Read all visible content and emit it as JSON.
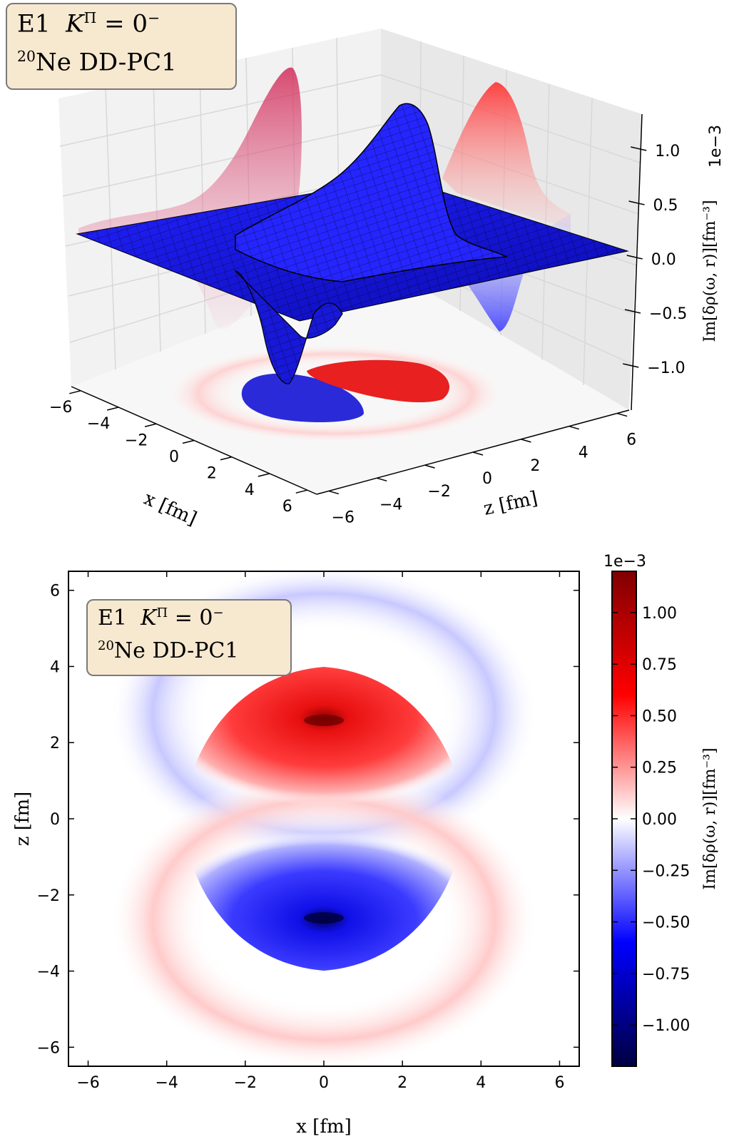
{
  "annotation": {
    "line1_prefix": "E1",
    "line1_k": "K",
    "line1_pi": "Π",
    "line1_eq": "= 0",
    "line1_minus": "−",
    "line2_mass": "20",
    "line2_text": "Ne DD-PC1"
  },
  "chart_data": [
    {
      "type": "surface3d",
      "xlabel": "x [fm]",
      "ylabel": "z [fm]",
      "zlabel": "Im[δρ(ω, r)][fm⁻³]",
      "z_offset_label": "1e−3",
      "x_ticks": [
        "−6",
        "−4",
        "−2",
        "0",
        "2",
        "4",
        "6"
      ],
      "y_ticks": [
        "−6",
        "−4",
        "−2",
        "0",
        "2",
        "4",
        "6"
      ],
      "z_ticks": [
        "1.0",
        "0.5",
        "0.0",
        "−0.5",
        "−1.0"
      ],
      "xlim": [
        -6.5,
        6.5
      ],
      "ylim": [
        -6.5,
        6.5
      ],
      "zlim": [
        -1.2,
        1.2
      ],
      "z_peak": 1.2,
      "z_trough": -1.2,
      "surface_color": "#1a1aee",
      "projection_cmap": "seismic"
    },
    {
      "type": "heatmap",
      "xlabel": "x [fm]",
      "ylabel": "z [fm]",
      "x_ticks": [
        "−6",
        "−4",
        "−2",
        "0",
        "2",
        "4",
        "6"
      ],
      "y_ticks": [
        "6",
        "4",
        "2",
        "0",
        "−2",
        "−4",
        "−6"
      ],
      "xlim": [
        -6.5,
        6.5
      ],
      "ylim": [
        -6.5,
        6.5
      ],
      "colorbar_label": "Im[δρ(ω, r)][fm⁻³]",
      "colorbar_offset_label": "1e−3",
      "colorbar_ticks": [
        "1.00",
        "0.75",
        "0.50",
        "0.25",
        "0.00",
        "−0.25",
        "−0.50",
        "−0.75",
        "−1.00"
      ],
      "colorbar_values": [
        1.0,
        0.75,
        0.5,
        0.25,
        0.0,
        -0.25,
        -0.5,
        -0.75,
        -1.0
      ],
      "color_range": [
        -1.2,
        1.2
      ],
      "features": [
        {
          "sign": "positive",
          "center_x": 0,
          "center_z": 2.6,
          "peak": 1.2
        },
        {
          "sign": "negative",
          "center_x": 0,
          "center_z": -2.6,
          "peak": -1.2
        },
        {
          "sign": "negative",
          "ring": "outer upper",
          "z_range": [
            3.5,
            6.0
          ]
        },
        {
          "sign": "positive",
          "ring": "outer lower",
          "z_range": [
            -6.0,
            -3.5
          ]
        }
      ]
    }
  ]
}
